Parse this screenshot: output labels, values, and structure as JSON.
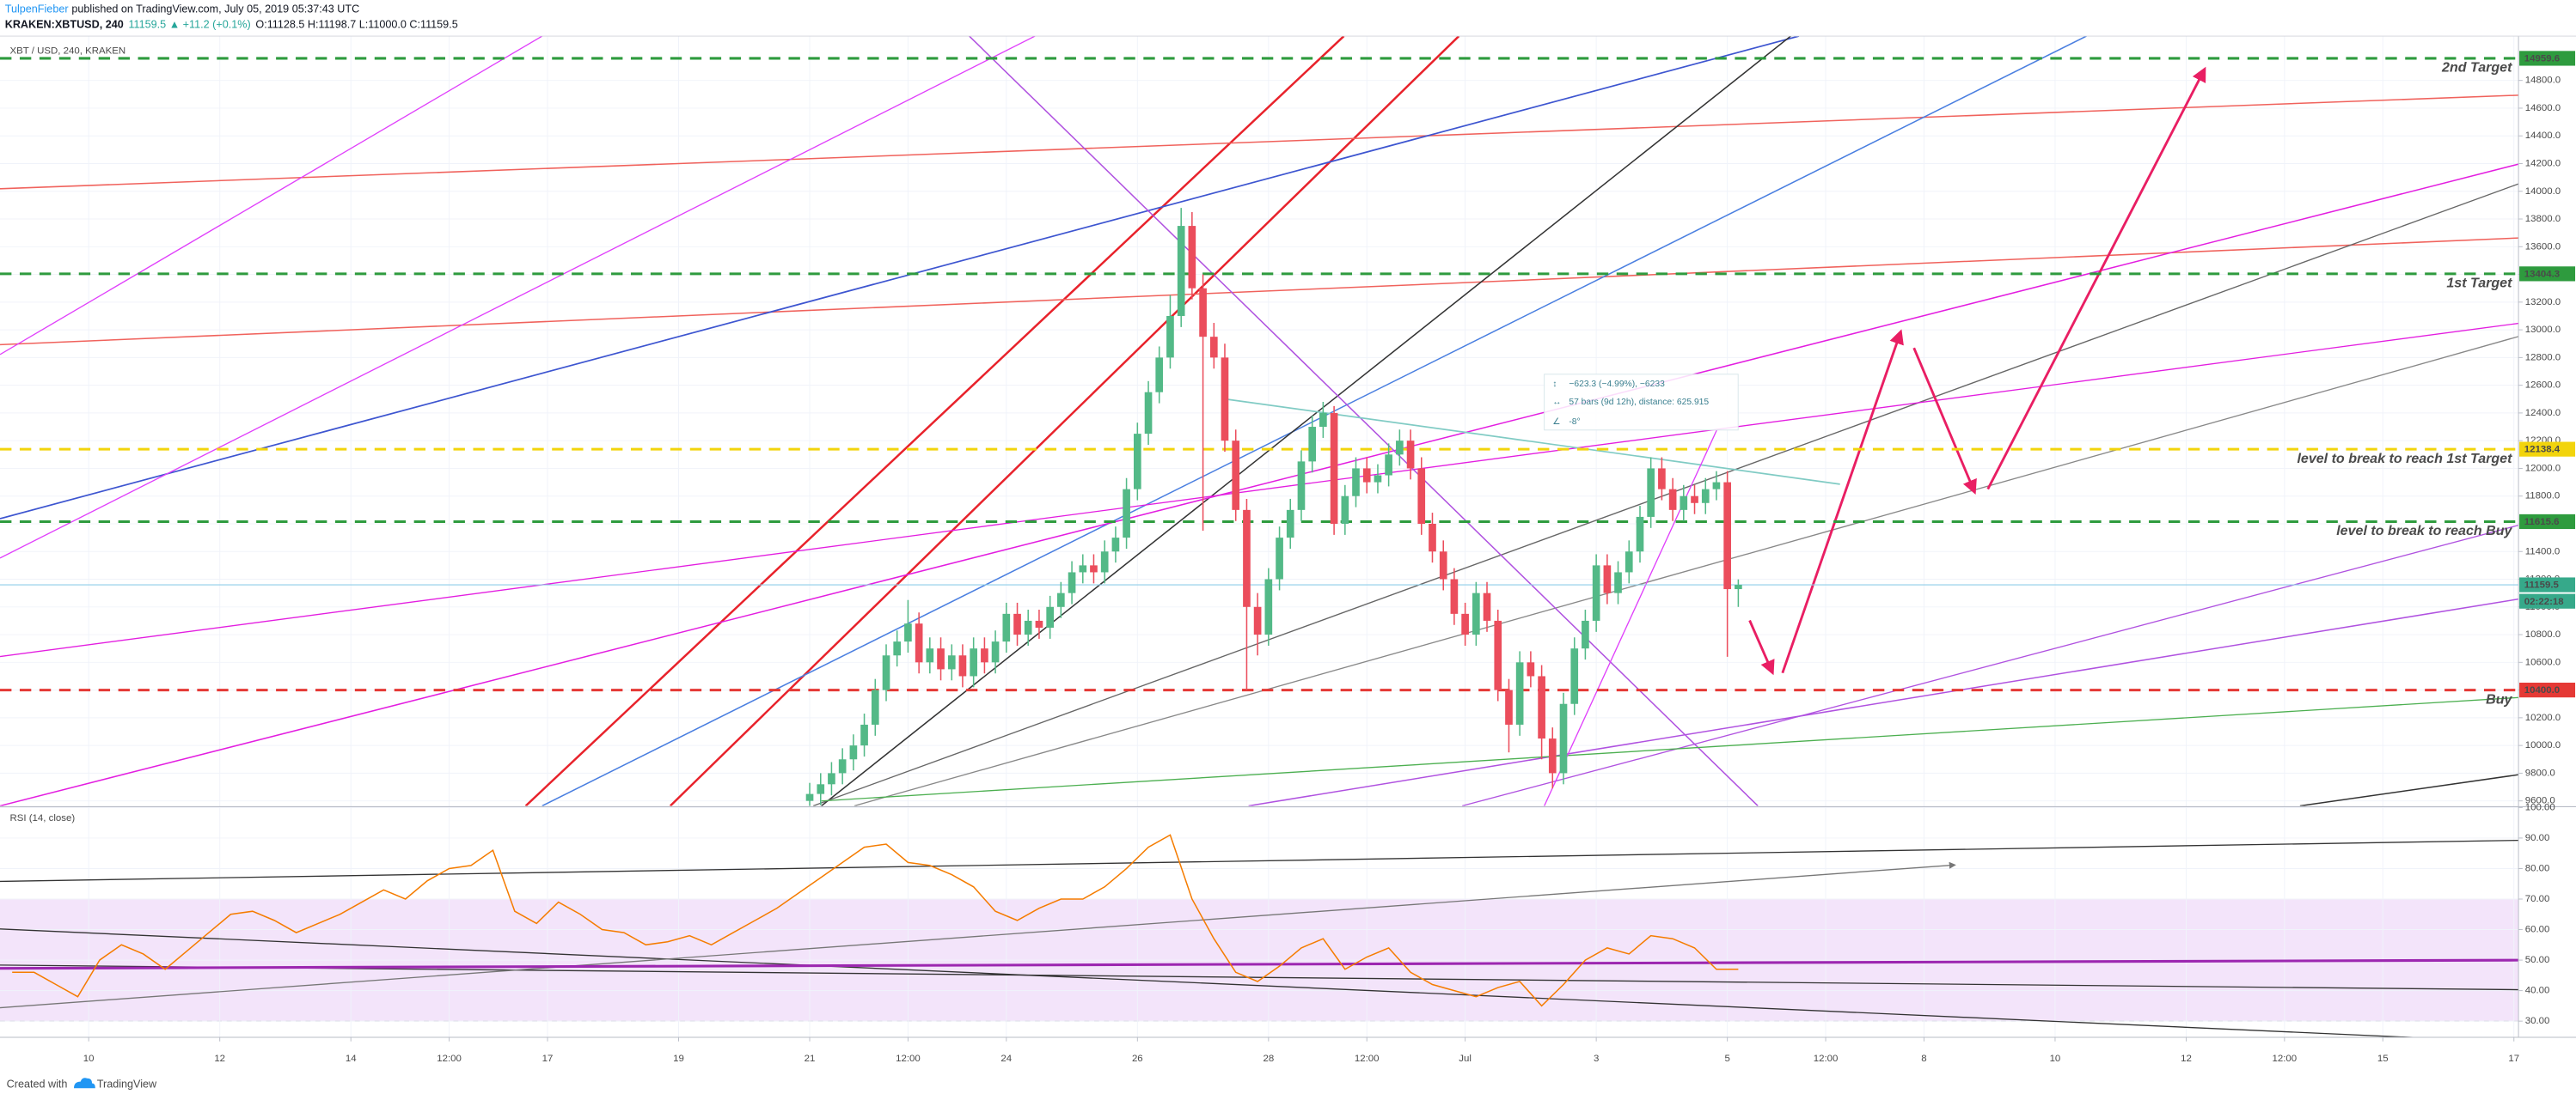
{
  "header": {
    "author": "TulpenFieber",
    "published": "published on TradingView.com, July 05, 2019 05:37:43 UTC",
    "symbol": "KRAKEN:XBTUSD, 240",
    "quote": "11159.5 ▲ +11.2 (+0.1%)",
    "ohlc": "O:11128.5 H:11198.7 L:11000.0 C:11159.5"
  },
  "footer": {
    "created": "Created with",
    "brand": "TradingView"
  },
  "chart_data": [
    {
      "type": "candlestick",
      "title": "XBT / USD, 240, KRAKEN",
      "x": [
        21,
        21.167,
        21.333,
        21.5,
        21.667,
        21.833,
        22,
        22.167,
        22.333,
        22.5,
        22.667,
        22.833,
        23,
        23.167,
        23.333,
        23.5,
        23.667,
        23.833,
        24,
        24.167,
        24.333,
        24.5,
        24.667,
        24.833,
        25,
        25.167,
        25.333,
        25.5,
        25.667,
        25.833,
        26,
        26.167,
        26.333,
        26.5,
        26.667,
        26.833,
        27,
        27.167,
        27.333,
        27.5,
        27.667,
        27.833,
        28,
        28.167,
        28.333,
        28.5,
        28.667,
        28.833,
        29,
        29.167,
        29.333,
        29.5,
        29.667,
        29.833,
        30,
        30.167,
        30.333,
        30.5,
        30.667,
        30.833,
        31,
        31.167,
        31.333,
        31.5,
        31.667,
        31.833,
        32,
        32.167,
        32.333,
        32.5,
        32.667,
        32.833,
        33,
        33.167,
        33.333,
        33.5,
        33.667,
        33.833,
        34,
        34.167,
        34.333,
        34.5,
        34.667,
        34.833,
        35,
        35.167
      ],
      "open": [
        9600,
        9650,
        9720,
        9800,
        9900,
        10000,
        10150,
        10400,
        10650,
        10750,
        10880,
        10600,
        10700,
        10550,
        10650,
        10500,
        10700,
        10600,
        10750,
        10950,
        10800,
        10900,
        10850,
        11000,
        11100,
        11250,
        11300,
        11250,
        11400,
        11500,
        11850,
        12250,
        12550,
        12800,
        13100,
        13750,
        13300,
        12950,
        12800,
        12200,
        11700,
        11000,
        10800,
        11200,
        11500,
        11700,
        12050,
        12300,
        12400,
        11600,
        11800,
        12000,
        11900,
        11950,
        12100,
        12200,
        12000,
        11600,
        11400,
        11200,
        10950,
        10800,
        11100,
        10900,
        10400,
        10150,
        10600,
        10500,
        10050,
        9800,
        10300,
        10700,
        10900,
        11300,
        11100,
        11250,
        11400,
        11650,
        12000,
        11850,
        11700,
        11800,
        11750,
        11850,
        11900,
        11128.5
      ],
      "high": [
        9730,
        9800,
        9880,
        9980,
        10080,
        10230,
        10480,
        10730,
        10830,
        11050,
        10960,
        10780,
        10780,
        10730,
        10730,
        10780,
        10780,
        10830,
        11030,
        11030,
        10980,
        10980,
        11080,
        11180,
        11330,
        11380,
        11380,
        11480,
        11580,
        11930,
        12330,
        12630,
        12880,
        13250,
        13880,
        13850,
        13400,
        13050,
        12900,
        12280,
        11780,
        11100,
        11280,
        11580,
        11780,
        12130,
        12380,
        12480,
        12450,
        11880,
        12080,
        12080,
        12030,
        12180,
        12280,
        12280,
        12080,
        11680,
        11480,
        11280,
        11030,
        11180,
        11180,
        10980,
        10480,
        10680,
        10680,
        10580,
        10130,
        10380,
        10780,
        10980,
        11380,
        11380,
        11330,
        11480,
        11730,
        12080,
        12080,
        11930,
        11880,
        11880,
        11930,
        11980,
        11980,
        11198.7
      ],
      "low": [
        9520,
        9570,
        9640,
        9720,
        9820,
        9920,
        10070,
        10320,
        10570,
        10670,
        10520,
        10520,
        10470,
        10470,
        10420,
        10420,
        10520,
        10520,
        10670,
        10720,
        10720,
        10770,
        10770,
        10920,
        11020,
        11170,
        11170,
        11170,
        11320,
        11420,
        11770,
        12170,
        12470,
        12720,
        13020,
        13220,
        11550,
        12720,
        12120,
        11620,
        10400,
        10650,
        10720,
        11120,
        11420,
        11620,
        11970,
        12220,
        11520,
        11520,
        11720,
        11820,
        11820,
        11870,
        12020,
        11920,
        11520,
        11320,
        11120,
        10870,
        10720,
        10720,
        10820,
        10320,
        9950,
        10070,
        10420,
        9900,
        9690,
        9720,
        10220,
        10620,
        10820,
        11020,
        11020,
        11170,
        11320,
        11570,
        11770,
        11620,
        11620,
        11670,
        11670,
        11770,
        10640,
        11000
      ],
      "close": [
        9650,
        9720,
        9800,
        9900,
        10000,
        10150,
        10400,
        10650,
        10750,
        10880,
        10600,
        10700,
        10550,
        10650,
        10500,
        10700,
        10600,
        10750,
        10950,
        10800,
        10900,
        10850,
        11000,
        11100,
        11250,
        11300,
        11250,
        11400,
        11500,
        11850,
        12250,
        12550,
        12800,
        13100,
        13750,
        13300,
        12950,
        12800,
        12200,
        11700,
        11000,
        10800,
        11200,
        11500,
        11700,
        12050,
        12300,
        12400,
        11600,
        11800,
        12000,
        11900,
        11950,
        12100,
        12200,
        12000,
        11600,
        11400,
        11200,
        10950,
        10800,
        11100,
        10900,
        10400,
        10150,
        10600,
        10500,
        10050,
        9800,
        10300,
        10700,
        10900,
        11300,
        11100,
        11250,
        11400,
        11650,
        12000,
        11850,
        11700,
        11800,
        11750,
        11850,
        11900,
        11128.5,
        11159.5
      ],
      "up_color": "#53b987",
      "down_color": "#eb4d5c",
      "xlim": [
        8.647,
        47.07
      ],
      "ylim": [
        9564,
        15120
      ],
      "yticks": [
        {
          "value": 9600,
          "label": "9600.0"
        },
        {
          "value": 9800,
          "label": "9800.0"
        },
        {
          "value": 10000,
          "label": "10000.0"
        },
        {
          "value": 10200,
          "label": "10200.0"
        },
        {
          "value": 10400,
          "label": "10400.0"
        },
        {
          "value": 10600,
          "label": "10600.0"
        },
        {
          "value": 10800,
          "label": "10800.0"
        },
        {
          "value": 11000,
          "label": "11000.0"
        },
        {
          "value": 11200,
          "label": "11200.0"
        },
        {
          "value": 11400,
          "label": "11400.0"
        },
        {
          "value": 11600,
          "label": "11600.0"
        },
        {
          "value": 11800,
          "label": "11800.0"
        },
        {
          "value": 12000,
          "label": "12000.0"
        },
        {
          "value": 12200,
          "label": "12200.0"
        },
        {
          "value": 12400,
          "label": "12400.0"
        },
        {
          "value": 12600,
          "label": "12600.0"
        },
        {
          "value": 12800,
          "label": "12800.0"
        },
        {
          "value": 13000,
          "label": "13000.0"
        },
        {
          "value": 13200,
          "label": "13200.0"
        },
        {
          "value": 13400,
          "label": "13400.0"
        },
        {
          "value": 13600,
          "label": "13600.0"
        },
        {
          "value": 13800,
          "label": "13800.0"
        },
        {
          "value": 14000,
          "label": "14000.0"
        },
        {
          "value": 14200,
          "label": "14200.0"
        },
        {
          "value": 14400,
          "label": "14400.0"
        },
        {
          "value": 14600,
          "label": "14600.0"
        },
        {
          "value": 14800,
          "label": "14800.0"
        }
      ],
      "grid": true,
      "last_price_color": "#36a98a",
      "countdown": "02:22:18",
      "levels": [
        {
          "price": 14959.6,
          "text": "2nd Target",
          "color": "#2e9b3e",
          "text_color": "#2e9b3e"
        },
        {
          "price": 13404.3,
          "text": "1st Target",
          "color": "#2e9b3e",
          "text_color": "#f5a623"
        },
        {
          "price": 12138.4,
          "text": "level to break to reach 1st Target",
          "color": "#f2d40c",
          "text_color": "#f5a623",
          "tag_text_color": "#131722"
        },
        {
          "price": 11615.6,
          "text": "level to break to reach Buy",
          "color": "#2e9b3e",
          "text_color": "#2e9b3e"
        },
        {
          "price": {
            "value": 10400,
            "label": "10400.0"
          },
          "text": "Buy",
          "color": "#e53935",
          "text_color": "#e53935"
        }
      ],
      "measure": [
        "−623.3 (−4.99%), −6233",
        "57 bars (9d 12h), distance: 625.915",
        "-8°"
      ]
    },
    {
      "type": "line",
      "title": "RSI (14, close)",
      "x": [
        8.833,
        9.167,
        9.5,
        9.833,
        10.167,
        10.5,
        10.833,
        11.167,
        11.5,
        11.833,
        12.167,
        12.5,
        12.833,
        13.167,
        13.5,
        13.833,
        14.167,
        14.5,
        14.833,
        15.167,
        15.5,
        15.833,
        16.167,
        16.5,
        16.833,
        17.167,
        17.5,
        17.833,
        18.167,
        18.5,
        18.833,
        19.167,
        19.5,
        19.833,
        20.167,
        20.5,
        20.833,
        21.167,
        21.5,
        21.833,
        22.167,
        22.5,
        22.833,
        23.167,
        23.5,
        23.833,
        24.167,
        24.5,
        24.833,
        25.167,
        25.5,
        25.833,
        26.167,
        26.5,
        26.833,
        27.167,
        27.5,
        27.833,
        28.167,
        28.5,
        28.833,
        29.167,
        29.5,
        29.833,
        30.167,
        30.5,
        30.833,
        31.167,
        31.5,
        31.833,
        32.167,
        32.5,
        32.833,
        33.167,
        33.5,
        33.833,
        34.167,
        34.5,
        34.833,
        35.167
      ],
      "values": [
        46,
        46,
        42,
        38,
        50,
        55,
        52,
        47,
        53,
        59,
        65,
        66,
        63,
        59,
        62,
        65,
        69,
        73,
        70,
        76,
        80,
        81,
        86,
        66,
        62,
        69,
        65,
        60,
        59,
        55,
        56,
        58,
        55,
        59,
        63,
        67,
        72,
        77,
        82,
        87,
        88,
        82,
        81,
        78,
        74,
        66,
        63,
        67,
        70,
        70,
        74,
        80,
        87,
        91,
        70,
        57,
        46,
        43,
        48,
        54,
        57,
        47,
        51,
        54,
        46,
        42,
        40,
        38,
        41,
        43,
        35,
        42,
        50,
        54,
        52,
        58,
        57,
        54,
        47,
        47
      ],
      "color": "#f57c00",
      "xlim": [
        8.647,
        47.07
      ],
      "ylim": [
        24.7,
        100
      ],
      "yticks": [
        {
          "value": 30,
          "label": "30.00"
        },
        {
          "value": 40,
          "label": "40.00"
        },
        {
          "value": 50,
          "label": "50.00"
        },
        {
          "value": 60,
          "label": "60.00"
        },
        {
          "value": 70,
          "label": "70.00"
        },
        {
          "value": 80,
          "label": "80.00"
        },
        {
          "value": 90,
          "label": "90.00"
        },
        {
          "value": 100,
          "label": "100.00"
        }
      ],
      "xticks": [
        10,
        12,
        14,
        {
          "value": 15.5,
          "label": "12:00"
        },
        17,
        19,
        21,
        {
          "value": 22.5,
          "label": "12:00"
        },
        24,
        26,
        28,
        {
          "value": 29.5,
          "label": "12:00"
        },
        {
          "value": 31,
          "label": "Jul"
        },
        {
          "value": 33,
          "label": "3"
        },
        {
          "value": 35,
          "label": "5"
        },
        {
          "value": 36.5,
          "label": "12:00"
        },
        {
          "value": 38,
          "label": "8"
        },
        {
          "value": 40,
          "label": "10"
        },
        {
          "value": 42,
          "label": "12"
        },
        {
          "value": 43.5,
          "label": "12:00"
        },
        {
          "value": 45,
          "label": "15"
        },
        {
          "value": 47,
          "label": "17"
        }
      ],
      "grid": true,
      "band": [
        30,
        70
      ],
      "band_color": "#f3e4fa"
    }
  ]
}
